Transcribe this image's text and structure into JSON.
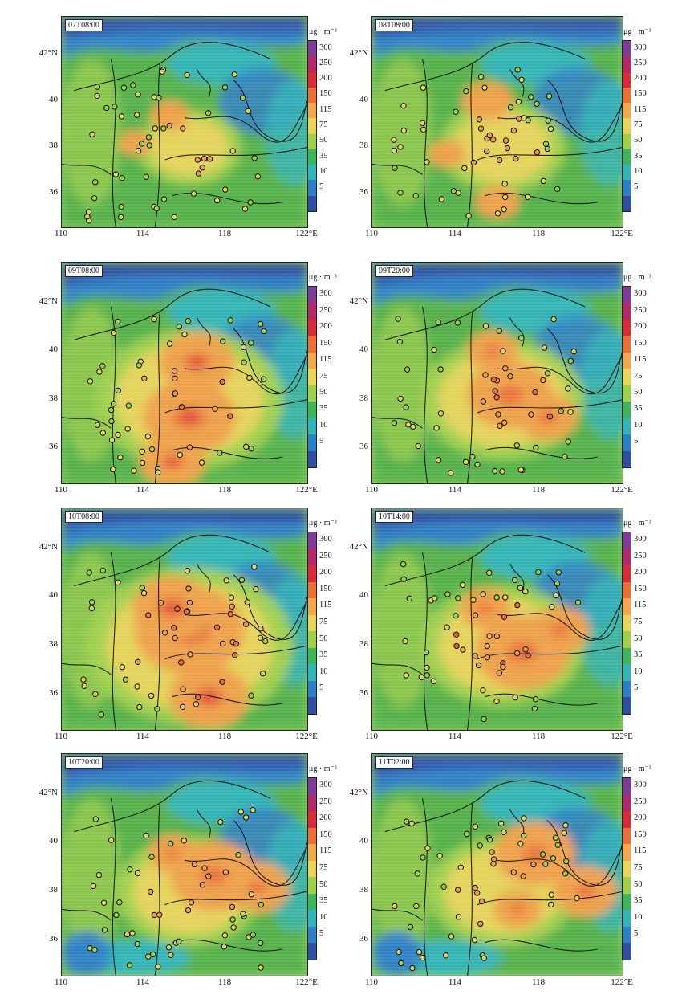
{
  "panels": [
    {
      "id": "p1",
      "label": "07T08:00",
      "intensity": 0.35,
      "hot": [
        [
          0.44,
          0.47,
          0.3
        ],
        [
          0.3,
          0.6,
          0.25
        ]
      ]
    },
    {
      "id": "p2",
      "label": "08T08:00",
      "intensity": 0.45,
      "hot": [
        [
          0.46,
          0.4,
          0.35
        ],
        [
          0.5,
          0.88,
          0.3
        ],
        [
          0.3,
          0.65,
          0.25
        ]
      ]
    },
    {
      "id": "p3",
      "label": "09T08:00",
      "intensity": 0.75,
      "hot": [
        [
          0.52,
          0.7,
          0.5
        ],
        [
          0.55,
          0.45,
          0.4
        ],
        [
          0.45,
          0.9,
          0.35
        ]
      ]
    },
    {
      "id": "p4",
      "label": "09T20:00",
      "intensity": 0.62,
      "hot": [
        [
          0.55,
          0.6,
          0.5
        ],
        [
          0.7,
          0.7,
          0.35
        ],
        [
          0.48,
          0.4,
          0.3
        ]
      ]
    },
    {
      "id": "p5",
      "label": "10T08:00",
      "intensity": 0.85,
      "hot": [
        [
          0.52,
          0.55,
          0.55
        ],
        [
          0.6,
          0.85,
          0.4
        ],
        [
          0.45,
          0.45,
          0.4
        ]
      ]
    },
    {
      "id": "p6",
      "label": "10T14:00",
      "intensity": 0.62,
      "hot": [
        [
          0.6,
          0.65,
          0.55
        ],
        [
          0.75,
          0.55,
          0.35
        ],
        [
          0.45,
          0.45,
          0.3
        ]
      ]
    },
    {
      "id": "p7",
      "label": "10T20:00",
      "intensity": 0.55,
      "hot": [
        [
          0.62,
          0.55,
          0.55
        ],
        [
          0.8,
          0.6,
          0.4
        ],
        [
          0.45,
          0.45,
          0.3
        ]
      ]
    },
    {
      "id": "p8",
      "label": "11T02:00",
      "intensity": 0.55,
      "hot": [
        [
          0.65,
          0.45,
          0.5
        ],
        [
          0.85,
          0.62,
          0.4
        ],
        [
          0.58,
          0.7,
          0.3
        ]
      ]
    }
  ],
  "axes": {
    "x_ticks": [
      "110",
      "114",
      "118",
      "122°E"
    ],
    "y_ticks": [
      "42°N",
      "40",
      "38",
      "36"
    ]
  },
  "colorbar": {
    "unit": "μg · m⁻³",
    "ticks": [
      "300",
      "250",
      "200",
      "150",
      "115",
      "75",
      "50",
      "35",
      "10",
      "5"
    ],
    "colors": [
      "#7e3c97",
      "#b02a6a",
      "#d62b3a",
      "#e8703a",
      "#f0a84e",
      "#e8d45a",
      "#9fcf4d",
      "#3fb45a",
      "#33b3b5",
      "#2f7fc4",
      "#2f4ea0"
    ]
  }
}
